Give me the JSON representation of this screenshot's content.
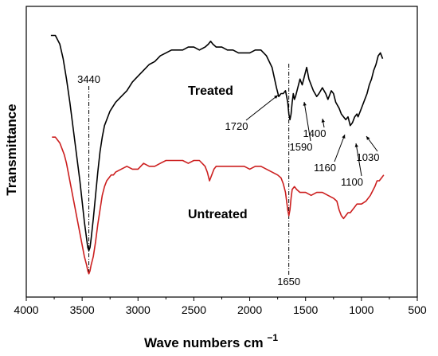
{
  "chart_data": {
    "type": "line",
    "xlabel": "Wave numbers cm",
    "xlabel_sup": "−1",
    "ylabel": "Transmittance",
    "xlim": [
      4000,
      500
    ],
    "ylim": [
      0,
      100
    ],
    "x_ticks": [
      4000,
      3500,
      3000,
      2500,
      2000,
      1500,
      1000,
      500
    ],
    "x_tick_labels": [
      "4000",
      "3500",
      "3000",
      "2500",
      "2000",
      "1500",
      "1000",
      "500"
    ],
    "grid": false,
    "series": [
      {
        "name": "Treated",
        "color": "#000000",
        "x": [
          3780,
          3740,
          3700,
          3670,
          3640,
          3610,
          3580,
          3550,
          3520,
          3500,
          3480,
          3460,
          3450,
          3440,
          3430,
          3420,
          3400,
          3380,
          3360,
          3340,
          3320,
          3300,
          3250,
          3200,
          3150,
          3100,
          3050,
          3000,
          2950,
          2900,
          2850,
          2800,
          2750,
          2700,
          2650,
          2600,
          2550,
          2500,
          2450,
          2400,
          2370,
          2350,
          2330,
          2300,
          2250,
          2200,
          2150,
          2100,
          2050,
          2000,
          1950,
          1900,
          1850,
          1800,
          1760,
          1740,
          1720,
          1700,
          1680,
          1660,
          1650,
          1640,
          1630,
          1620,
          1610,
          1600,
          1590,
          1570,
          1550,
          1530,
          1510,
          1490,
          1470,
          1450,
          1430,
          1400,
          1380,
          1350,
          1320,
          1300,
          1270,
          1250,
          1230,
          1200,
          1180,
          1160,
          1140,
          1120,
          1100,
          1080,
          1060,
          1040,
          1030,
          1010,
          990,
          970,
          950,
          930,
          910,
          890,
          870,
          850,
          830,
          810
        ],
        "y": [
          90,
          90,
          87,
          82,
          75,
          67,
          58,
          49,
          40,
          33,
          26,
          20,
          17,
          16,
          17,
          20,
          27,
          35,
          43,
          50,
          55,
          59,
          64,
          67,
          69,
          71,
          74,
          76,
          78,
          80,
          81,
          83,
          84,
          85,
          85,
          85,
          86,
          86,
          85,
          86,
          87,
          88,
          87,
          86,
          86,
          85,
          85,
          84,
          84,
          84,
          85,
          85,
          83,
          79,
          72,
          69,
          70,
          70,
          71,
          67,
          63,
          61,
          63,
          67,
          70,
          68,
          69,
          72,
          75,
          73,
          76,
          79,
          75,
          73,
          71,
          69,
          70,
          72,
          70,
          68,
          71,
          70,
          67,
          65,
          63,
          62,
          61,
          62,
          59,
          60,
          62,
          63,
          62,
          64,
          66,
          68,
          70,
          73,
          75,
          78,
          80,
          83,
          84,
          82
        ]
      },
      {
        "name": "Untreated",
        "color": "#cc1f1f",
        "x": [
          3770,
          3740,
          3720,
          3700,
          3680,
          3660,
          3640,
          3620,
          3600,
          3580,
          3560,
          3540,
          3520,
          3500,
          3480,
          3460,
          3450,
          3440,
          3430,
          3420,
          3400,
          3380,
          3360,
          3340,
          3320,
          3300,
          3280,
          3260,
          3240,
          3220,
          3200,
          3150,
          3100,
          3050,
          3000,
          2950,
          2900,
          2850,
          2800,
          2750,
          2700,
          2650,
          2600,
          2550,
          2500,
          2450,
          2400,
          2380,
          2360,
          2340,
          2320,
          2300,
          2250,
          2200,
          2150,
          2100,
          2050,
          2000,
          1950,
          1900,
          1850,
          1800,
          1750,
          1720,
          1700,
          1680,
          1660,
          1650,
          1640,
          1630,
          1620,
          1600,
          1580,
          1550,
          1500,
          1450,
          1400,
          1350,
          1300,
          1250,
          1220,
          1200,
          1180,
          1160,
          1140,
          1120,
          1100,
          1080,
          1060,
          1040,
          1000,
          960,
          920,
          880,
          860,
          840,
          820,
          800
        ],
        "y": [
          55,
          55,
          54,
          53,
          51,
          49,
          46,
          42,
          38,
          34,
          30,
          26,
          22,
          18,
          14,
          11,
          9,
          8,
          9,
          11,
          14,
          19,
          25,
          30,
          35,
          38,
          40,
          41,
          42,
          42,
          43,
          44,
          45,
          44,
          44,
          46,
          45,
          45,
          46,
          47,
          47,
          47,
          47,
          46,
          47,
          47,
          45,
          43,
          40,
          42,
          44,
          45,
          45,
          45,
          45,
          45,
          45,
          44,
          45,
          45,
          44,
          43,
          42,
          41,
          39,
          36,
          30,
          28,
          30,
          34,
          37,
          38,
          37,
          36,
          36,
          35,
          36,
          36,
          35,
          34,
          33,
          30,
          28,
          27,
          28,
          29,
          29,
          30,
          31,
          32,
          32,
          33,
          35,
          38,
          40,
          40,
          41,
          42
        ]
      }
    ],
    "annotations": [
      {
        "id": "a3440",
        "label": "3440",
        "x": 3440,
        "style": "vline"
      },
      {
        "id": "a1650",
        "label": "1650",
        "x": 1650,
        "style": "vline"
      },
      {
        "id": "a1720",
        "label": "1720",
        "x": 1720,
        "style": "arrow"
      },
      {
        "id": "a1590",
        "label": "1590",
        "x": 1590,
        "style": "arrow"
      },
      {
        "id": "a1400",
        "label": "1400",
        "x": 1400,
        "style": "arrow"
      },
      {
        "id": "a1160",
        "label": "1160",
        "x": 1160,
        "style": "arrow"
      },
      {
        "id": "a1100",
        "label": "1100",
        "x": 1100,
        "style": "arrow"
      },
      {
        "id": "a1030",
        "label": "1030",
        "x": 1030,
        "style": "arrow"
      }
    ]
  }
}
